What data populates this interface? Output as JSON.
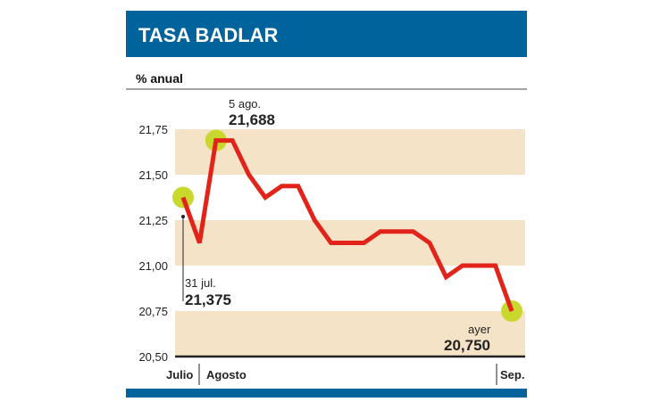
{
  "title": "TASA BADLAR",
  "unit": "% anual",
  "colors": {
    "header": "#00639c",
    "band": "#f5e3c8",
    "line": "#e2231a",
    "marker": "#c8d82c",
    "axis": "#222222"
  },
  "chart_data": {
    "type": "line",
    "title": "TASA BADLAR",
    "ylabel": "% anual",
    "ylim": [
      20.5,
      21.75
    ],
    "yticks": [
      "21,75",
      "21,50",
      "21,25",
      "21,00",
      "20,75",
      "20,50"
    ],
    "ytick_values": [
      21.75,
      21.5,
      21.25,
      21.0,
      20.75,
      20.5
    ],
    "x_labels": [
      "Julio",
      "Agosto",
      "Sep."
    ],
    "values": [
      21.375,
      21.125,
      21.688,
      21.688,
      21.5,
      21.375,
      21.4375,
      21.4375,
      21.25,
      21.125,
      21.125,
      21.125,
      21.1875,
      21.1875,
      21.1875,
      21.125,
      20.9375,
      21.0,
      21.0,
      21.0,
      20.75
    ],
    "grid": "alternating horizontal bands",
    "annotations": [
      {
        "index": 0,
        "label": "31 jul.",
        "value": "21,375"
      },
      {
        "index": 2,
        "label": "5 ago.",
        "value": "21,688"
      },
      {
        "index": 20,
        "label": "ayer",
        "value": "20,750"
      }
    ]
  }
}
